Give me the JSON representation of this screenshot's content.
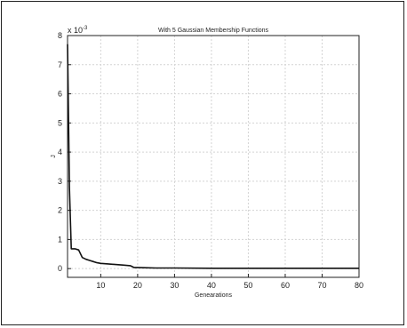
{
  "chart_data": {
    "type": "line",
    "title": "With 5 Gaussian Membership Functions",
    "xlabel": "Genearations",
    "ylabel": "J",
    "y_exponent_label": "x 10",
    "y_exponent_power": "-3",
    "xlim": [
      1,
      80
    ],
    "ylim": [
      -0.0003,
      0.008
    ],
    "xticks": [
      10,
      20,
      30,
      40,
      50,
      60,
      70,
      80
    ],
    "yticks": [
      0,
      1,
      2,
      3,
      4,
      5,
      6,
      7,
      8
    ],
    "ytick_scale": 0.001,
    "grid": true,
    "series": [
      {
        "color": "#111111",
        "x": [
          1,
          1.5,
          2,
          3,
          4,
          5,
          6,
          7,
          8,
          9,
          10,
          12,
          14,
          16,
          18,
          19,
          20,
          22,
          25,
          30,
          40,
          50,
          60,
          70,
          80
        ],
        "y": [
          0.0077,
          0.0028,
          0.00068,
          0.00068,
          0.00064,
          0.00038,
          0.00032,
          0.00028,
          0.00024,
          0.0002,
          0.00018,
          0.00016,
          0.00014,
          0.00012,
          0.0001,
          4e-05,
          4e-05,
          3e-05,
          2e-05,
          2e-05,
          1e-05,
          1e-05,
          1e-05,
          1e-05,
          1e-05
        ]
      }
    ]
  }
}
